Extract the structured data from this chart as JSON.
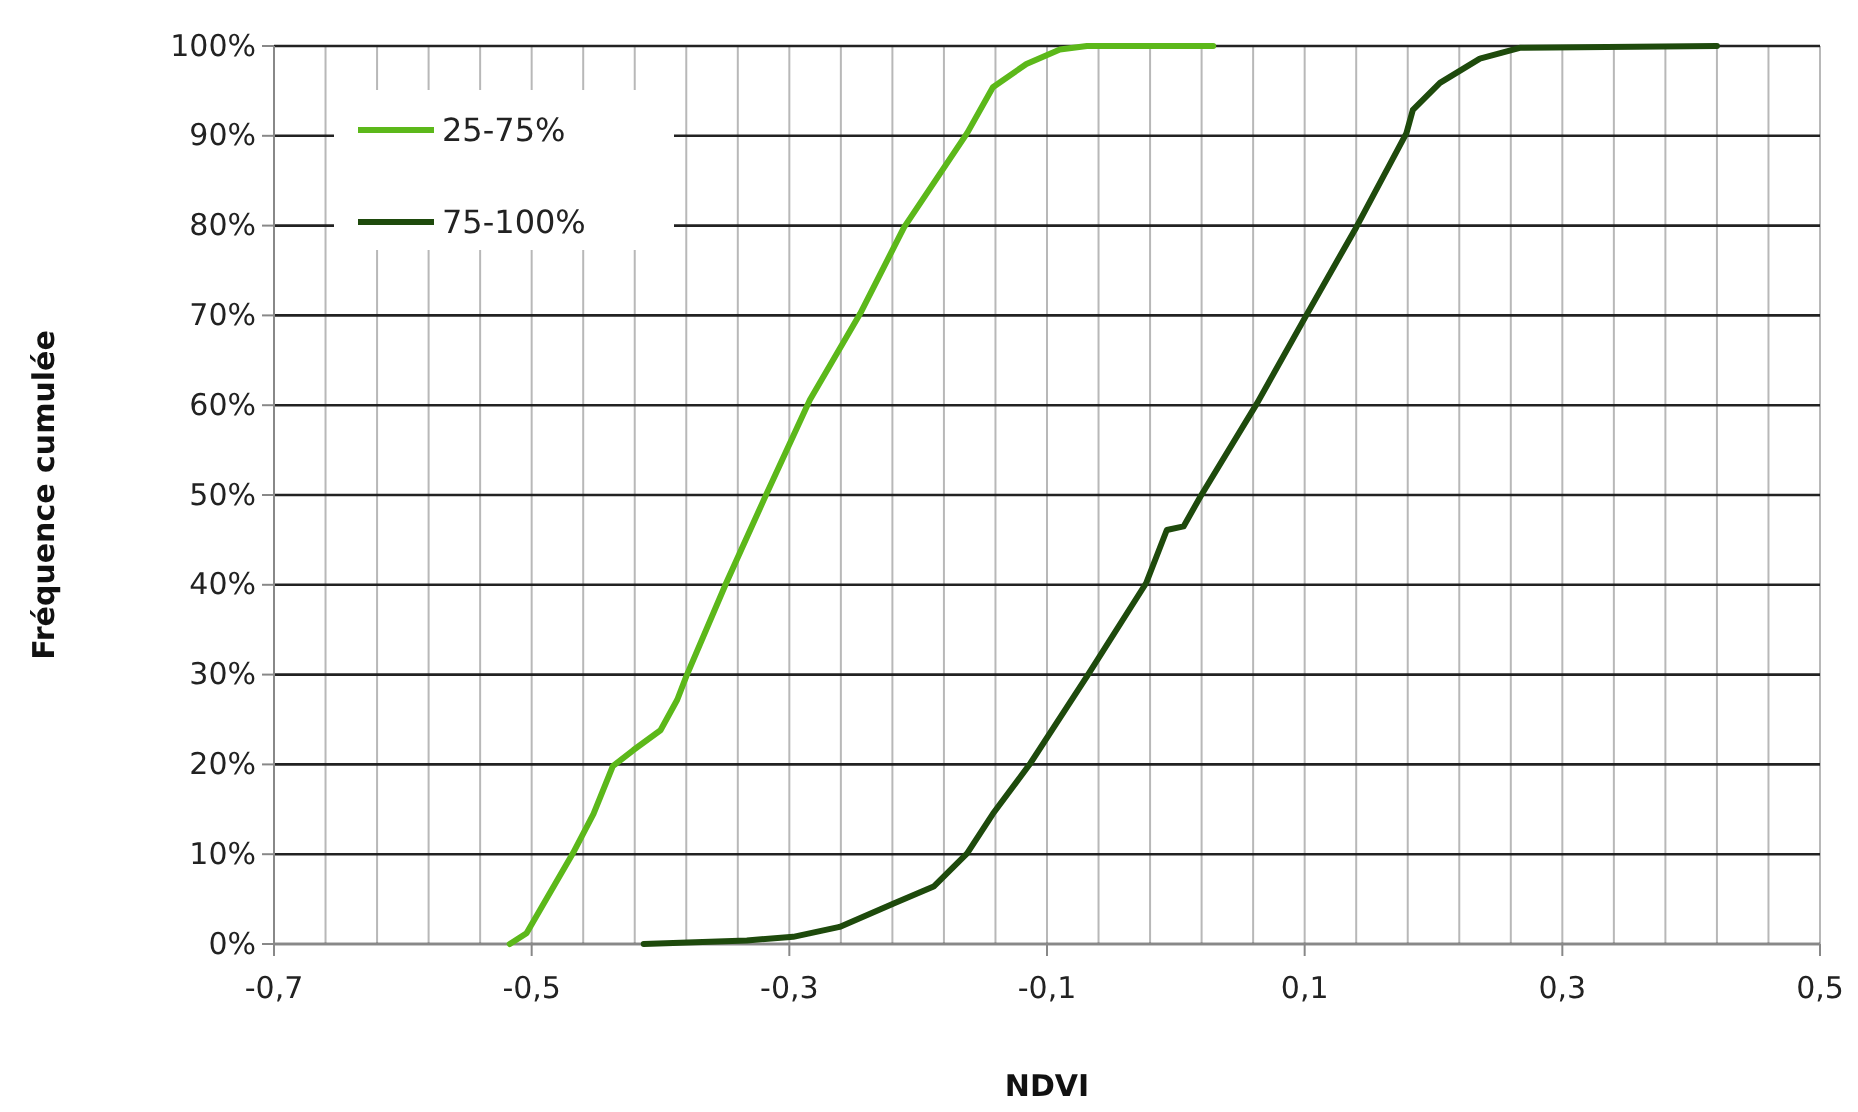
{
  "chart_data": {
    "type": "line",
    "xlabel": "NDVI",
    "ylabel": "Fréquence cumulée",
    "xlim": [
      -0.7,
      0.5
    ],
    "xticks": [
      {
        "value": -0.7,
        "label": "-0,7"
      },
      {
        "value": -0.66,
        "label": null
      },
      {
        "value": -0.62,
        "label": null
      },
      {
        "value": -0.58,
        "label": null
      },
      {
        "value": -0.54,
        "label": null
      },
      {
        "value": -0.5,
        "label": "-0,5"
      },
      {
        "value": -0.46,
        "label": null
      },
      {
        "value": -0.42,
        "label": null
      },
      {
        "value": -0.38,
        "label": null
      },
      {
        "value": -0.34,
        "label": null
      },
      {
        "value": -0.3,
        "label": "-0,3"
      },
      {
        "value": -0.26,
        "label": null
      },
      {
        "value": -0.22,
        "label": null
      },
      {
        "value": -0.18,
        "label": null
      },
      {
        "value": -0.14,
        "label": null
      },
      {
        "value": -0.1,
        "label": "-0,1"
      },
      {
        "value": -0.06,
        "label": null
      },
      {
        "value": -0.02,
        "label": null
      },
      {
        "value": 0.02,
        "label": null
      },
      {
        "value": 0.06,
        "label": null
      },
      {
        "value": 0.1,
        "label": "0,1"
      },
      {
        "value": 0.14,
        "label": null
      },
      {
        "value": 0.18,
        "label": null
      },
      {
        "value": 0.22,
        "label": null
      },
      {
        "value": 0.26,
        "label": null
      },
      {
        "value": 0.3,
        "label": "0,3"
      },
      {
        "value": 0.34,
        "label": null
      },
      {
        "value": 0.38,
        "label": null
      },
      {
        "value": 0.42,
        "label": null
      },
      {
        "value": 0.46,
        "label": null
      },
      {
        "value": 0.5,
        "label": "0,5"
      }
    ],
    "ylim": [
      0,
      100
    ],
    "yticks": [
      {
        "value": 0,
        "label": "0%"
      },
      {
        "value": 10,
        "label": "10%"
      },
      {
        "value": 20,
        "label": "20%"
      },
      {
        "value": 30,
        "label": "30%"
      },
      {
        "value": 40,
        "label": "40%"
      },
      {
        "value": 50,
        "label": "50%"
      },
      {
        "value": 60,
        "label": "60%"
      },
      {
        "value": 70,
        "label": "70%"
      },
      {
        "value": 80,
        "label": "80%"
      },
      {
        "value": 90,
        "label": "90%"
      },
      {
        "value": 100,
        "label": "100%"
      }
    ],
    "grid": true,
    "legend": "top left",
    "marker": "none",
    "line_style": "solid",
    "series": [
      {
        "name": "25-75%",
        "color": "#5cb81a",
        "x": [
          -0.517,
          -0.504,
          -0.468,
          -0.452,
          -0.437,
          -0.421,
          -0.4,
          -0.387,
          -0.38,
          -0.349,
          -0.32,
          -0.284,
          -0.245,
          -0.211,
          -0.162,
          -0.142,
          -0.116,
          -0.09,
          -0.069,
          0.029
        ],
        "values": [
          0,
          1.2,
          10.1,
          14.5,
          19.8,
          21.6,
          23.8,
          27.2,
          29.8,
          40.2,
          49.4,
          60.6,
          70.2,
          79.8,
          90.3,
          95.4,
          98,
          99.6,
          100,
          100
        ]
      },
      {
        "name": "75-100%",
        "color": "#1e4a0c",
        "x": [
          -0.413,
          -0.333,
          -0.297,
          -0.261,
          -0.219,
          -0.188,
          -0.162,
          -0.142,
          -0.113,
          -0.069,
          -0.023,
          -0.007,
          0.006,
          0.019,
          0.063,
          0.102,
          0.14,
          0.179,
          0.184,
          0.205,
          0.236,
          0.267,
          0.42
        ],
        "values": [
          0,
          0.4,
          0.8,
          1.9,
          4.5,
          6.4,
          10.1,
          14.5,
          20.1,
          29.8,
          40.2,
          46.1,
          46.5,
          49.8,
          60.2,
          70.2,
          79.8,
          90.3,
          92.9,
          95.9,
          98.6,
          99.8,
          100
        ]
      }
    ]
  }
}
